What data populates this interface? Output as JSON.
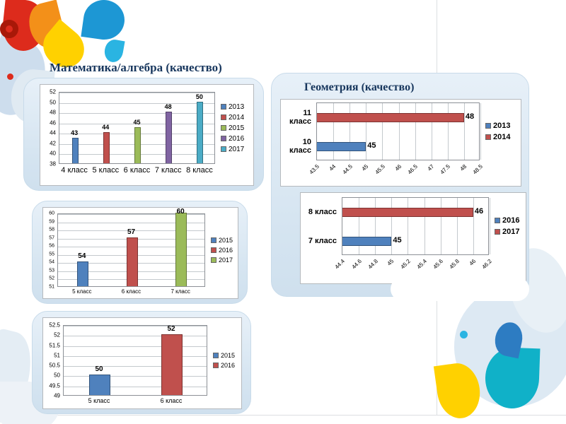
{
  "titles": {
    "math": "Математика/алгебра (качество)",
    "geometry": "Геометрия (качество)"
  },
  "chart_data": [
    {
      "id": "math-classes",
      "type": "bar",
      "orientation": "vertical",
      "categories": [
        "4 класс",
        "5 класс",
        "6 класс",
        "7 класс",
        "8 класс"
      ],
      "values": [
        43,
        44,
        45,
        48,
        50
      ],
      "data_labels": [
        "43",
        "44",
        "45",
        "48",
        "50"
      ],
      "bar_colors": [
        "#4f81bd",
        "#c0504d",
        "#9bbb59",
        "#8064a2",
        "#4bacc6"
      ],
      "min": 38,
      "max": 52,
      "ticks": [
        "38",
        "40",
        "42",
        "44",
        "46",
        "48",
        "50",
        "52"
      ],
      "legend": [
        {
          "label": "2013",
          "color": "#4f81bd"
        },
        {
          "label": "2014",
          "color": "#c0504d"
        },
        {
          "label": "2015",
          "color": "#9bbb59"
        },
        {
          "label": "2016",
          "color": "#8064a2"
        },
        {
          "label": "2017",
          "color": "#4bacc6"
        }
      ],
      "grid": true,
      "legend_position": "right"
    },
    {
      "id": "math-567",
      "type": "bar",
      "orientation": "vertical",
      "categories": [
        "5 класс",
        "6 класс",
        "7 класс"
      ],
      "values": [
        54,
        57,
        60
      ],
      "data_labels": [
        "54",
        "57",
        "60"
      ],
      "bar_colors": [
        "#4f81bd",
        "#c0504d",
        "#9bbb59"
      ],
      "min": 51,
      "max": 60,
      "ticks": [
        "51",
        "52",
        "53",
        "54",
        "55",
        "56",
        "57",
        "58",
        "59",
        "60"
      ],
      "legend": [
        {
          "label": "2015",
          "color": "#4f81bd"
        },
        {
          "label": "2016",
          "color": "#c0504d"
        },
        {
          "label": "2017",
          "color": "#9bbb59"
        }
      ],
      "grid": true,
      "legend_position": "right"
    },
    {
      "id": "math-56",
      "type": "bar",
      "orientation": "vertical",
      "categories": [
        "5 класс",
        "6 класс"
      ],
      "values": [
        50,
        52
      ],
      "data_labels": [
        "50",
        "52"
      ],
      "bar_colors": [
        "#4f81bd",
        "#c0504d"
      ],
      "min": 49,
      "max": 52.5,
      "ticks": [
        "49",
        "49.5",
        "50",
        "50.5",
        "51",
        "51.5",
        "52",
        "52.5"
      ],
      "legend": [
        {
          "label": "2015",
          "color": "#4f81bd"
        },
        {
          "label": "2016",
          "color": "#c0504d"
        }
      ],
      "grid": true,
      "legend_position": "right"
    },
    {
      "id": "geo-1011",
      "type": "bar",
      "orientation": "horizontal",
      "categories": [
        "11 класс",
        "10 класс"
      ],
      "values": [
        48,
        45
      ],
      "data_labels": [
        "48",
        "45"
      ],
      "bar_colors": [
        "#c0504d",
        "#4f81bd"
      ],
      "min": 43.5,
      "max": 48.5,
      "ticks": [
        "43.5",
        "44",
        "44.5",
        "45",
        "45.5",
        "46",
        "46.5",
        "47",
        "47.5",
        "48",
        "48.5"
      ],
      "legend": [
        {
          "label": "2013",
          "color": "#4f81bd"
        },
        {
          "label": "2014",
          "color": "#c0504d"
        }
      ],
      "grid": true,
      "legend_position": "right"
    },
    {
      "id": "geo-78",
      "type": "bar",
      "orientation": "horizontal",
      "categories": [
        "8 класс",
        "7 класс"
      ],
      "values": [
        46,
        45
      ],
      "data_labels": [
        "46",
        "45"
      ],
      "bar_colors": [
        "#c0504d",
        "#4f81bd"
      ],
      "min": 44.4,
      "max": 46.2,
      "ticks": [
        "44.4",
        "44.6",
        "44.8",
        "45",
        "45.2",
        "45.4",
        "45.6",
        "45.8",
        "46",
        "46.2"
      ],
      "legend": [
        {
          "label": "2016",
          "color": "#4f81bd"
        },
        {
          "label": "2017",
          "color": "#c0504d"
        }
      ],
      "grid": true,
      "legend_position": "right"
    }
  ]
}
